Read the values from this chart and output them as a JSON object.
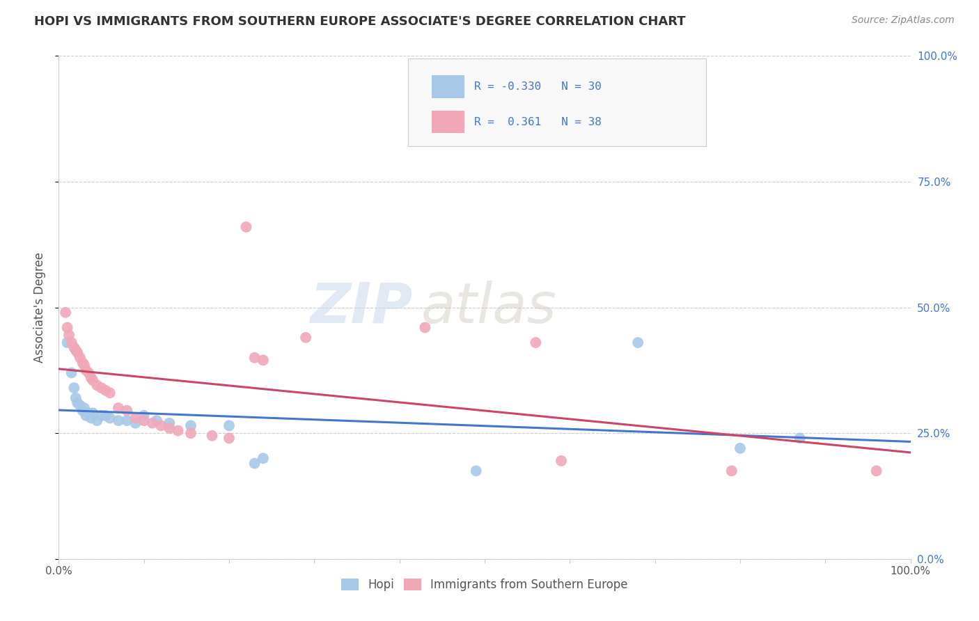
{
  "title": "HOPI VS IMMIGRANTS FROM SOUTHERN EUROPE ASSOCIATE'S DEGREE CORRELATION CHART",
  "source_text": "Source: ZipAtlas.com",
  "ylabel": "Associate's Degree",
  "blue_R": -0.33,
  "blue_N": 30,
  "pink_R": 0.361,
  "pink_N": 38,
  "blue_color": "#a8c8e8",
  "pink_color": "#f0a8b8",
  "blue_line_color": "#4477cc",
  "pink_line_color": "#cc4466",
  "blue_scatter": [
    [
      0.01,
      0.43
    ],
    [
      0.015,
      0.37
    ],
    [
      0.018,
      0.34
    ],
    [
      0.02,
      0.32
    ],
    [
      0.022,
      0.31
    ],
    [
      0.025,
      0.305
    ],
    [
      0.028,
      0.295
    ],
    [
      0.03,
      0.3
    ],
    [
      0.032,
      0.285
    ],
    [
      0.035,
      0.29
    ],
    [
      0.038,
      0.28
    ],
    [
      0.04,
      0.29
    ],
    [
      0.045,
      0.275
    ],
    [
      0.05,
      0.285
    ],
    [
      0.055,
      0.285
    ],
    [
      0.06,
      0.28
    ],
    [
      0.07,
      0.275
    ],
    [
      0.08,
      0.275
    ],
    [
      0.09,
      0.27
    ],
    [
      0.1,
      0.285
    ],
    [
      0.115,
      0.275
    ],
    [
      0.13,
      0.27
    ],
    [
      0.155,
      0.265
    ],
    [
      0.2,
      0.265
    ],
    [
      0.23,
      0.19
    ],
    [
      0.24,
      0.2
    ],
    [
      0.49,
      0.175
    ],
    [
      0.68,
      0.43
    ],
    [
      0.8,
      0.22
    ],
    [
      0.87,
      0.24
    ]
  ],
  "pink_scatter": [
    [
      0.008,
      0.49
    ],
    [
      0.01,
      0.46
    ],
    [
      0.012,
      0.445
    ],
    [
      0.015,
      0.43
    ],
    [
      0.018,
      0.42
    ],
    [
      0.02,
      0.415
    ],
    [
      0.022,
      0.41
    ],
    [
      0.025,
      0.4
    ],
    [
      0.028,
      0.39
    ],
    [
      0.03,
      0.385
    ],
    [
      0.032,
      0.375
    ],
    [
      0.035,
      0.37
    ],
    [
      0.038,
      0.36
    ],
    [
      0.04,
      0.355
    ],
    [
      0.045,
      0.345
    ],
    [
      0.05,
      0.34
    ],
    [
      0.055,
      0.335
    ],
    [
      0.06,
      0.33
    ],
    [
      0.07,
      0.3
    ],
    [
      0.08,
      0.295
    ],
    [
      0.09,
      0.28
    ],
    [
      0.1,
      0.275
    ],
    [
      0.11,
      0.27
    ],
    [
      0.12,
      0.265
    ],
    [
      0.13,
      0.26
    ],
    [
      0.14,
      0.255
    ],
    [
      0.155,
      0.25
    ],
    [
      0.18,
      0.245
    ],
    [
      0.2,
      0.24
    ],
    [
      0.22,
      0.66
    ],
    [
      0.23,
      0.4
    ],
    [
      0.24,
      0.395
    ],
    [
      0.29,
      0.44
    ],
    [
      0.43,
      0.46
    ],
    [
      0.56,
      0.43
    ],
    [
      0.59,
      0.195
    ],
    [
      0.79,
      0.175
    ],
    [
      0.96,
      0.175
    ]
  ],
  "xlim": [
    0.0,
    1.0
  ],
  "ylim": [
    0.0,
    1.0
  ],
  "ytick_values": [
    0.0,
    0.25,
    0.5,
    0.75,
    1.0
  ],
  "ytick_labels_right": [
    "0.0%",
    "25.0%",
    "50.0%",
    "75.0%",
    "100.0%"
  ],
  "xtick_values": [
    0.0,
    0.1,
    0.2,
    0.3,
    0.4,
    0.5,
    0.6,
    0.7,
    0.8,
    0.9,
    1.0
  ],
  "grid_color": "#cccccc",
  "bg_color": "#ffffff",
  "title_color": "#333333",
  "axis_label_color": "#555555",
  "tick_color": "#555555",
  "right_tick_color": "#4477cc",
  "watermark_color": "#e0e8f0",
  "legend_box_color": "#f8f8f8",
  "legend_border_color": "#cccccc"
}
